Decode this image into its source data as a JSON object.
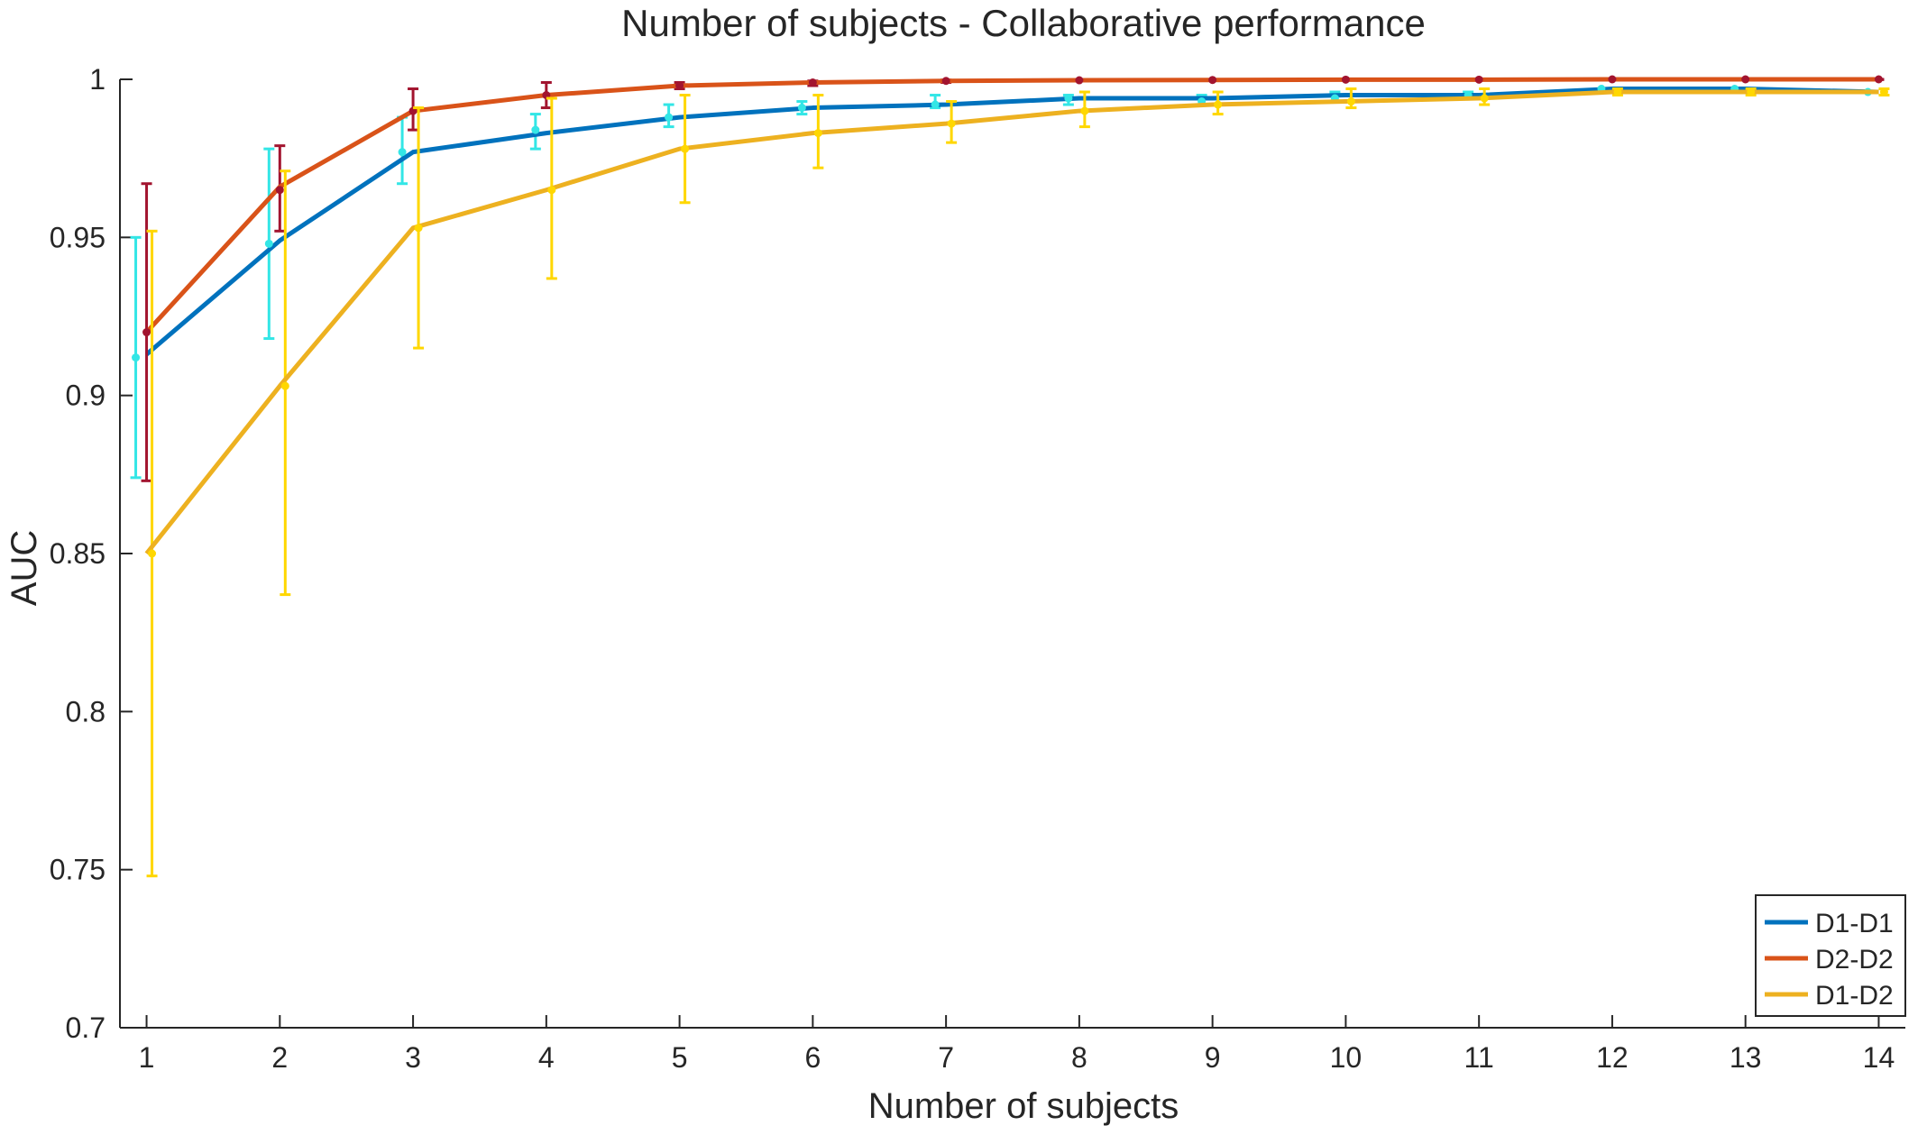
{
  "chart_data": {
    "type": "line",
    "title": "Number of subjects - Collaborative performance",
    "xlabel": "Number of subjects",
    "ylabel": "AUC",
    "xlim": [
      0.8,
      14.2
    ],
    "ylim": [
      0.7,
      1.0
    ],
    "x": [
      1,
      2,
      3,
      4,
      5,
      6,
      7,
      8,
      9,
      10,
      11,
      12,
      13,
      14
    ],
    "x_ticks": [
      "1",
      "2",
      "3",
      "4",
      "5",
      "6",
      "7",
      "8",
      "9",
      "10",
      "11",
      "12",
      "13",
      "14"
    ],
    "y_ticks": [
      {
        "value": 0.7,
        "label": "0.7"
      },
      {
        "value": 0.75,
        "label": "0.75"
      },
      {
        "value": 0.8,
        "label": "0.8"
      },
      {
        "value": 0.85,
        "label": "0.85"
      },
      {
        "value": 0.9,
        "label": "0.9"
      },
      {
        "value": 0.95,
        "label": "0.95"
      },
      {
        "value": 1.0,
        "label": "1"
      }
    ],
    "grid": false,
    "legend_position": "bottom-right",
    "series": [
      {
        "name": "D1-D1",
        "color": "#0072BD",
        "errorbar_color": "#33E6E6",
        "values": [
          0.913,
          0.949,
          0.977,
          0.983,
          0.988,
          0.991,
          0.992,
          0.994,
          0.994,
          0.995,
          0.995,
          0.997,
          0.997,
          0.996
        ],
        "points": [
          0.912,
          0.948,
          0.977,
          0.984,
          0.988,
          0.991,
          0.992,
          0.994,
          0.993,
          0.994,
          0.995,
          0.997,
          0.997,
          0.996
        ],
        "err_low": [
          0.874,
          0.918,
          0.967,
          0.978,
          0.985,
          0.989,
          0.991,
          0.992,
          0.992,
          0.993,
          0.994,
          0.996,
          0.996,
          0.996
        ],
        "err_high": [
          0.95,
          0.978,
          0.988,
          0.989,
          0.992,
          0.993,
          0.995,
          0.995,
          0.995,
          0.996,
          0.996,
          0.997,
          0.997,
          0.996
        ]
      },
      {
        "name": "D2-D2",
        "color": "#D95319",
        "errorbar_color": "#A2142F",
        "values": [
          0.92,
          0.966,
          0.99,
          0.995,
          0.998,
          0.999,
          0.9995,
          0.9997,
          0.9998,
          0.9999,
          0.9999,
          1.0,
          1.0,
          1.0
        ],
        "points": [
          0.92,
          0.965,
          0.99,
          0.995,
          0.998,
          0.999,
          0.9995,
          0.9997,
          0.9998,
          0.9999,
          0.9999,
          1.0,
          1.0,
          1.0
        ],
        "err_low": [
          0.873,
          0.952,
          0.984,
          0.991,
          0.997,
          0.998,
          0.999,
          0.9995,
          0.9996,
          0.9998,
          0.9998,
          0.9999,
          0.9999,
          0.9999
        ],
        "err_high": [
          0.967,
          0.979,
          0.997,
          0.999,
          0.999,
          0.9995,
          0.9998,
          0.9999,
          0.9999,
          1.0,
          1.0,
          1.0,
          1.0,
          1.0
        ]
      },
      {
        "name": "D1-D2",
        "color": "#EDB120",
        "errorbar_color": "#FFD700",
        "values": [
          0.85,
          0.903,
          0.953,
          0.965,
          0.978,
          0.983,
          0.986,
          0.99,
          0.992,
          0.993,
          0.994,
          0.996,
          0.996,
          0.996
        ],
        "points": [
          0.85,
          0.903,
          0.953,
          0.965,
          0.978,
          0.983,
          0.986,
          0.99,
          0.992,
          0.993,
          0.994,
          0.996,
          0.996,
          0.996
        ],
        "err_low": [
          0.748,
          0.837,
          0.915,
          0.937,
          0.961,
          0.972,
          0.98,
          0.985,
          0.989,
          0.991,
          0.992,
          0.995,
          0.995,
          0.995
        ],
        "err_high": [
          0.952,
          0.971,
          0.991,
          0.994,
          0.995,
          0.995,
          0.993,
          0.996,
          0.996,
          0.997,
          0.997,
          0.997,
          0.997,
          0.997
        ]
      }
    ]
  }
}
